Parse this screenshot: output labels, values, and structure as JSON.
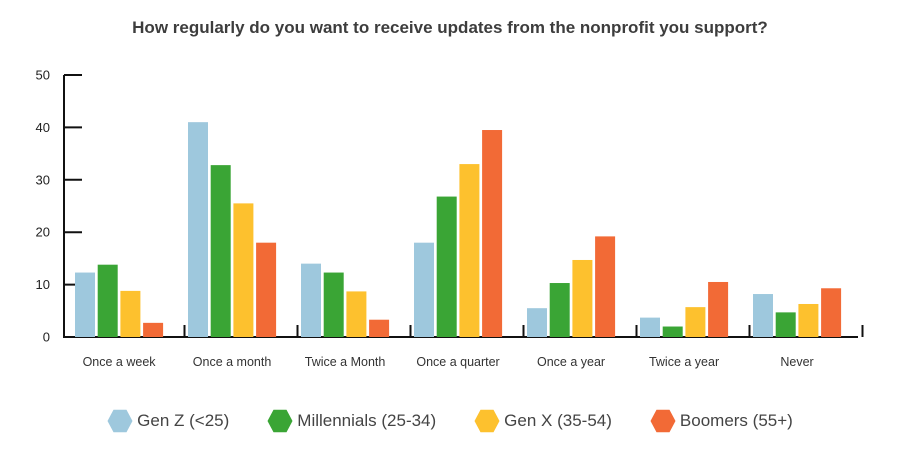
{
  "chart_data": {
    "type": "bar",
    "title": "How regularly do you want to receive updates from the nonprofit you support?",
    "categories": [
      "Once a week",
      "Once a month",
      "Twice a Month",
      "Once a quarter",
      "Once a year",
      "Twice a year",
      "Never"
    ],
    "series": [
      {
        "name": "Gen Z (<25)",
        "color": "#9ec8dd",
        "values": [
          12.3,
          41,
          14,
          18,
          5.5,
          3.7,
          8.2
        ]
      },
      {
        "name": "Millennials (25-34)",
        "color": "#3aa535",
        "values": [
          13.8,
          32.8,
          12.3,
          26.8,
          10.3,
          2,
          4.7
        ]
      },
      {
        "name": "Gen X (35-54)",
        "color": "#fdc12e",
        "values": [
          8.8,
          25.5,
          8.7,
          33,
          14.7,
          5.7,
          6.3
        ]
      },
      {
        "name": "Boomers (55+)",
        "color": "#f26a36",
        "values": [
          2.7,
          18,
          3.3,
          39.5,
          19.2,
          10.5,
          9.3
        ]
      }
    ],
    "yticks": [
      0,
      10,
      20,
      30,
      40,
      50
    ],
    "ylim": [
      0,
      50
    ],
    "xlabel": "",
    "ylabel": "",
    "grid": false,
    "legend_position": "bottom"
  },
  "legend_icon": "hexagon-icon"
}
